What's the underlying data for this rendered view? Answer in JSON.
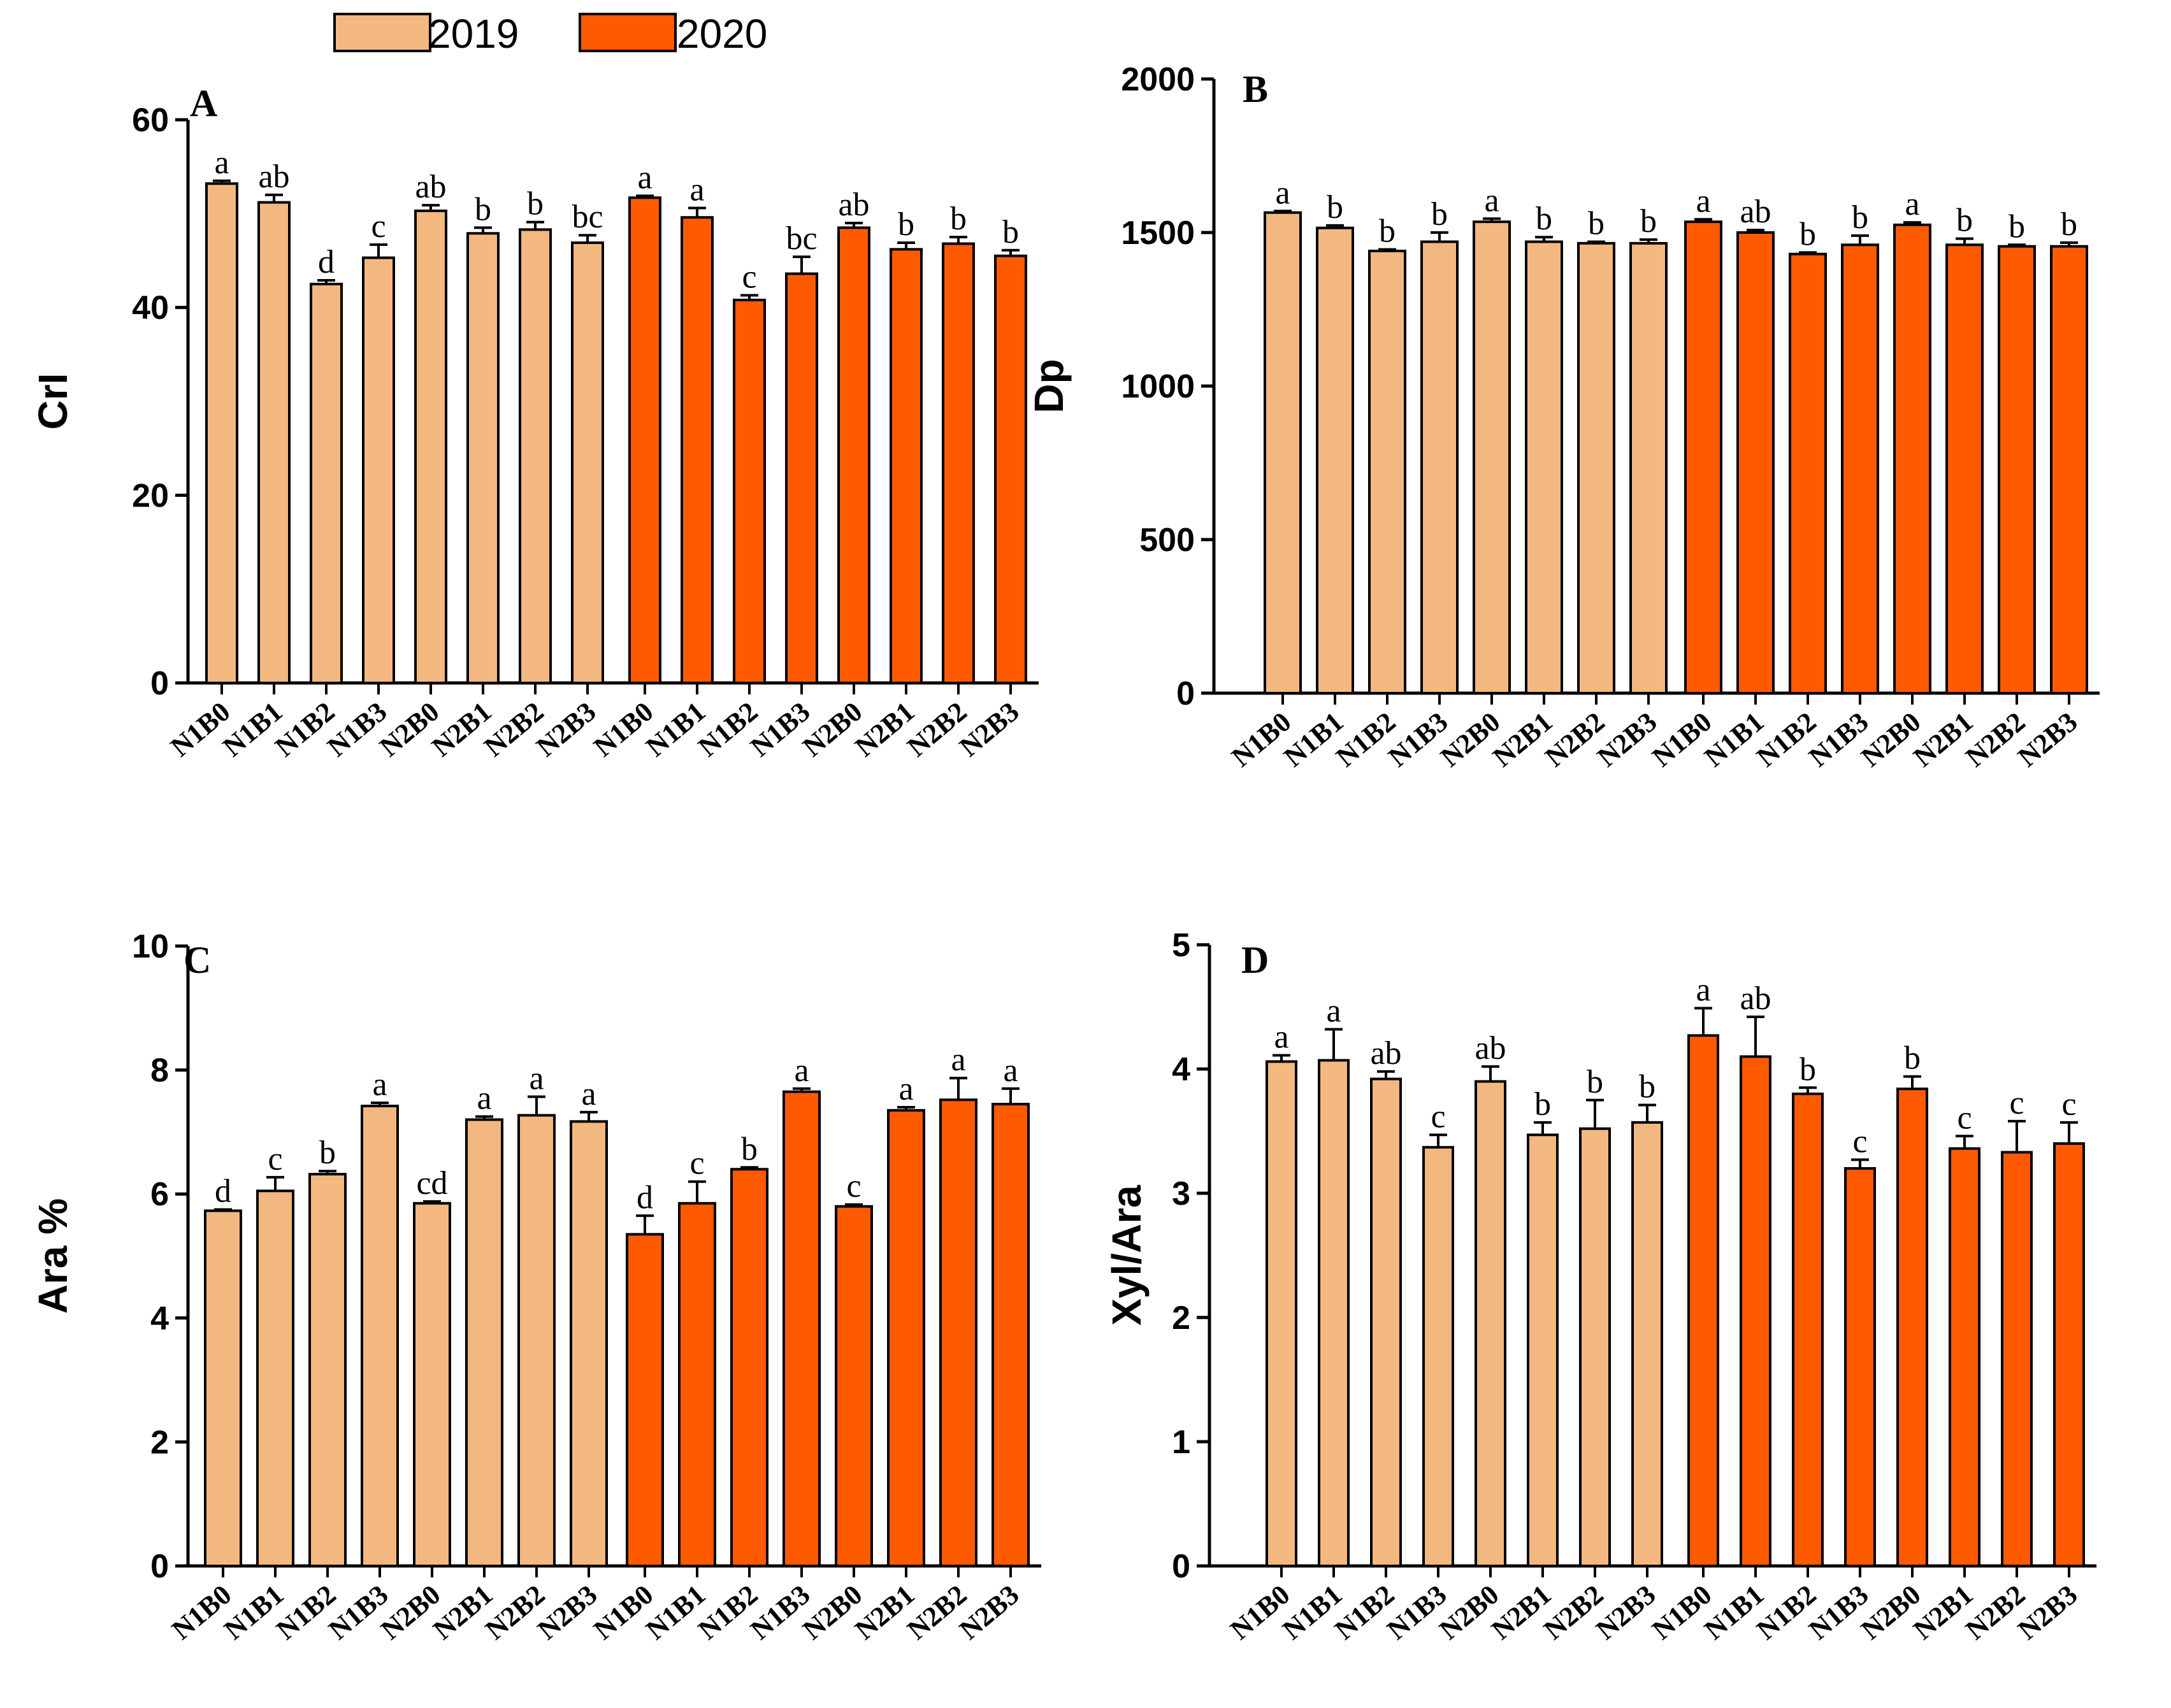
{
  "legend": [
    {
      "label": "2019",
      "color": "#F2B880"
    },
    {
      "label": "2020",
      "color": "#FF5A00"
    }
  ],
  "chart_data": [
    {
      "type": "bar",
      "title": "A",
      "ylabel": "CrI",
      "ylim": [
        0,
        60
      ],
      "yticks": [
        0,
        20,
        40,
        60
      ],
      "categories": [
        "N1B0",
        "N1B1",
        "N1B2",
        "N1B3",
        "N2B0",
        "N2B1",
        "N2B2",
        "N2B3"
      ],
      "series": [
        {
          "name": "2019",
          "values": [
            53.2,
            51.2,
            42.5,
            45.3,
            50.3,
            47.9,
            48.3,
            46.9
          ],
          "errors": [
            0.3,
            0.8,
            0.4,
            1.4,
            0.6,
            0.6,
            0.8,
            0.8
          ],
          "letters": [
            "a",
            "ab",
            "d",
            "c",
            "ab",
            "b",
            "b",
            "bc"
          ]
        },
        {
          "name": "2020",
          "values": [
            51.7,
            49.6,
            40.8,
            43.6,
            48.5,
            46.2,
            46.8,
            45.5
          ],
          "errors": [
            0.2,
            1.0,
            0.5,
            1.8,
            0.5,
            0.7,
            0.7,
            0.6
          ],
          "letters": [
            "a",
            "a",
            "c",
            "bc",
            "ab",
            "b",
            "b",
            "b"
          ]
        }
      ]
    },
    {
      "type": "bar",
      "title": "B",
      "ylabel": "Dp",
      "ylim": [
        0,
        2000
      ],
      "yticks": [
        0,
        500,
        1000,
        1500,
        2000
      ],
      "categories": [
        "N1B0",
        "N1B1",
        "N1B2",
        "N1B3",
        "N2B0",
        "N2B1",
        "N2B2",
        "N2B3"
      ],
      "series": [
        {
          "name": "2019",
          "values": [
            1565,
            1515,
            1440,
            1470,
            1535,
            1470,
            1465,
            1465
          ],
          "errors": [
            5,
            8,
            5,
            30,
            10,
            15,
            5,
            12
          ],
          "letters": [
            "a",
            "b",
            "b",
            "b",
            "a",
            "b",
            "b",
            "b"
          ]
        },
        {
          "name": "2020",
          "values": [
            1535,
            1500,
            1430,
            1460,
            1525,
            1460,
            1455,
            1455
          ],
          "errors": [
            8,
            8,
            5,
            30,
            8,
            20,
            5,
            12
          ],
          "letters": [
            "a",
            "ab",
            "b",
            "b",
            "a",
            "b",
            "b",
            "b"
          ]
        }
      ]
    },
    {
      "type": "bar",
      "title": "C",
      "ylabel": "Ara %",
      "ylim": [
        0,
        10
      ],
      "yticks": [
        0,
        2,
        4,
        6,
        8,
        10
      ],
      "categories": [
        "N1B0",
        "N1B1",
        "N1B2",
        "N1B3",
        "N2B0",
        "N2B1",
        "N2B2",
        "N2B3"
      ],
      "series": [
        {
          "name": "2019",
          "values": [
            5.73,
            6.05,
            6.32,
            7.42,
            5.85,
            7.2,
            7.27,
            7.17
          ],
          "errors": [
            0.02,
            0.22,
            0.05,
            0.05,
            0.03,
            0.05,
            0.3,
            0.15
          ],
          "letters": [
            "d",
            "c",
            "b",
            "a",
            "cd",
            "a",
            "a",
            "a"
          ]
        },
        {
          "name": "2020",
          "values": [
            5.35,
            5.85,
            6.4,
            7.65,
            5.8,
            7.35,
            7.52,
            7.45
          ],
          "errors": [
            0.3,
            0.35,
            0.03,
            0.05,
            0.03,
            0.05,
            0.35,
            0.25
          ],
          "letters": [
            "d",
            "c",
            "b",
            "a",
            "c",
            "a",
            "a",
            "a"
          ]
        }
      ]
    },
    {
      "type": "bar",
      "title": "D",
      "ylabel": "Xyl/Ara",
      "ylim": [
        0,
        5
      ],
      "yticks": [
        0,
        1,
        2,
        3,
        4,
        5
      ],
      "categories": [
        "N1B0",
        "N1B1",
        "N1B2",
        "N1B3",
        "N2B0",
        "N2B1",
        "N2B2",
        "N2B3"
      ],
      "series": [
        {
          "name": "2019",
          "values": [
            4.06,
            4.07,
            3.92,
            3.37,
            3.9,
            3.47,
            3.52,
            3.57
          ],
          "errors": [
            0.05,
            0.25,
            0.06,
            0.1,
            0.12,
            0.1,
            0.23,
            0.14
          ],
          "letters": [
            "a",
            "a",
            "ab",
            "c",
            "ab",
            "b",
            "b",
            "b"
          ]
        },
        {
          "name": "2020",
          "values": [
            4.27,
            4.1,
            3.8,
            3.2,
            3.84,
            3.36,
            3.33,
            3.4
          ],
          "errors": [
            0.22,
            0.32,
            0.05,
            0.07,
            0.1,
            0.1,
            0.25,
            0.17
          ],
          "letters": [
            "a",
            "ab",
            "b",
            "c",
            "b",
            "c",
            "c",
            "c"
          ]
        }
      ]
    }
  ]
}
